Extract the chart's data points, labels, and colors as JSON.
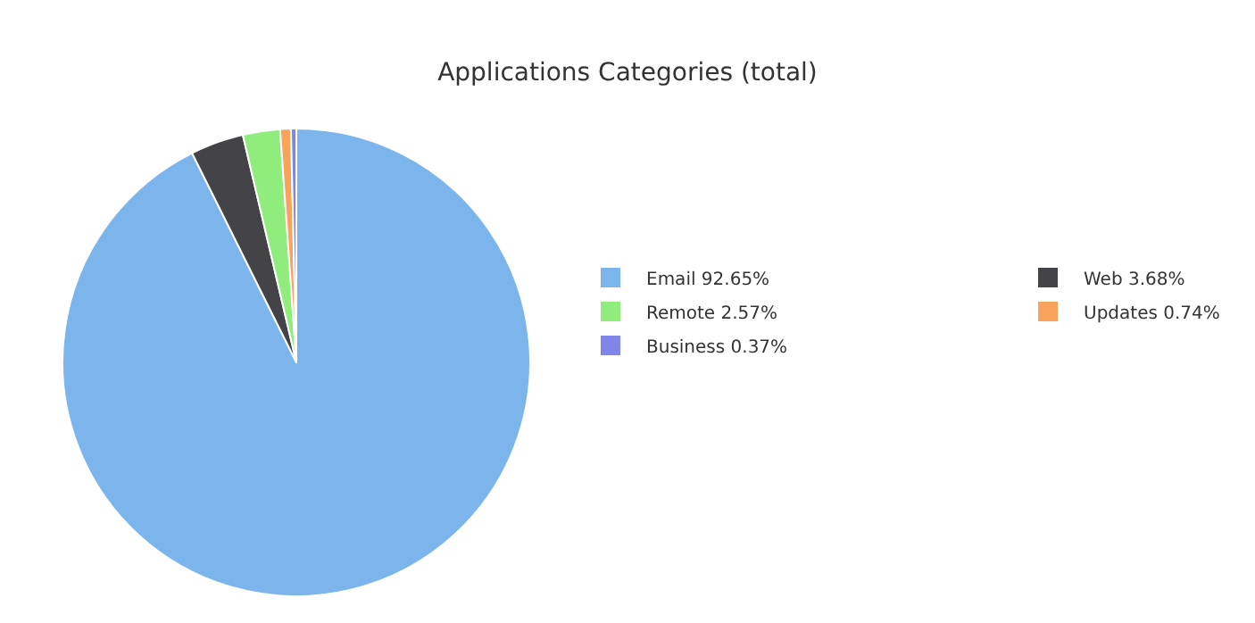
{
  "chart_data": {
    "type": "pie",
    "title": "Applications Categories (total)",
    "categories": [
      "Email",
      "Web",
      "Remote",
      "Updates",
      "Business"
    ],
    "values": [
      92.65,
      3.68,
      2.57,
      0.74,
      0.37
    ],
    "value_labels": [
      "92.65%",
      "3.68%",
      "2.57%",
      "0.74%",
      "0.37%"
    ],
    "colors": [
      "#7cb5ec",
      "#434348",
      "#90ed7d",
      "#f7a35c",
      "#8085e9"
    ],
    "legend": "right"
  }
}
